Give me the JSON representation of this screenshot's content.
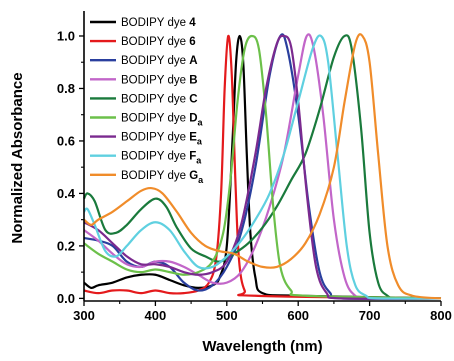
{
  "chart_data": {
    "type": "line",
    "xlabel": "Wavelength (nm)",
    "ylabel": "Normalized Absorbance",
    "xlim": [
      300,
      800
    ],
    "ylim": [
      0.0,
      1.0
    ],
    "x_ticks": [
      "300",
      "400",
      "500",
      "600",
      "700",
      "800"
    ],
    "y_ticks": [
      "0.0",
      "0.2",
      "0.4",
      "0.6",
      "0.8",
      "1.0"
    ],
    "grid": false,
    "legend_position": "top-left",
    "series": [
      {
        "name_prefix": "BODIPY dye ",
        "name_bold": "4",
        "name_sub": "",
        "color": "#000000",
        "points": [
          [
            300,
            0.06
          ],
          [
            310,
            0.04
          ],
          [
            320,
            0.05
          ],
          [
            340,
            0.06
          ],
          [
            360,
            0.08
          ],
          [
            380,
            0.09
          ],
          [
            400,
            0.09
          ],
          [
            420,
            0.07
          ],
          [
            440,
            0.05
          ],
          [
            460,
            0.04
          ],
          [
            480,
            0.05
          ],
          [
            490,
            0.08
          ],
          [
            500,
            0.2
          ],
          [
            508,
            0.6
          ],
          [
            513,
            0.9
          ],
          [
            518,
            1.0
          ],
          [
            523,
            0.9
          ],
          [
            528,
            0.55
          ],
          [
            533,
            0.25
          ],
          [
            540,
            0.08
          ],
          [
            550,
            0.02
          ],
          [
            600,
            0.01
          ],
          [
            800,
            0.0
          ]
        ]
      },
      {
        "name_prefix": "BODIPY dye ",
        "name_bold": "6",
        "name_sub": "",
        "color": "#e41a1c",
        "points": [
          [
            300,
            0.03
          ],
          [
            320,
            0.02
          ],
          [
            340,
            0.03
          ],
          [
            360,
            0.03
          ],
          [
            380,
            0.02
          ],
          [
            400,
            0.03
          ],
          [
            420,
            0.02
          ],
          [
            440,
            0.02
          ],
          [
            460,
            0.03
          ],
          [
            475,
            0.06
          ],
          [
            485,
            0.15
          ],
          [
            492,
            0.4
          ],
          [
            497,
            0.8
          ],
          [
            502,
            1.0
          ],
          [
            507,
            0.85
          ],
          [
            512,
            0.45
          ],
          [
            517,
            0.15
          ],
          [
            525,
            0.03
          ],
          [
            540,
            0.01
          ],
          [
            800,
            0.0
          ]
        ]
      },
      {
        "name_prefix": "BODIPY dye ",
        "name_bold": "A",
        "name_sub": "",
        "color": "#2a3f9e",
        "points": [
          [
            300,
            0.23
          ],
          [
            320,
            0.22
          ],
          [
            340,
            0.2
          ],
          [
            360,
            0.14
          ],
          [
            380,
            0.12
          ],
          [
            400,
            0.14
          ],
          [
            420,
            0.12
          ],
          [
            440,
            0.06
          ],
          [
            460,
            0.03
          ],
          [
            480,
            0.05
          ],
          [
            500,
            0.12
          ],
          [
            520,
            0.25
          ],
          [
            540,
            0.5
          ],
          [
            560,
            0.85
          ],
          [
            575,
            1.0
          ],
          [
            585,
            0.95
          ],
          [
            600,
            0.7
          ],
          [
            615,
            0.35
          ],
          [
            630,
            0.1
          ],
          [
            645,
            0.02
          ],
          [
            660,
            0.0
          ],
          [
            800,
            0.0
          ]
        ]
      },
      {
        "name_prefix": "BODIPY dye ",
        "name_bold": "B",
        "name_sub": "",
        "color": "#c266c9",
        "points": [
          [
            300,
            0.26
          ],
          [
            320,
            0.22
          ],
          [
            340,
            0.17
          ],
          [
            360,
            0.13
          ],
          [
            380,
            0.12
          ],
          [
            400,
            0.14
          ],
          [
            420,
            0.14
          ],
          [
            440,
            0.12
          ],
          [
            460,
            0.09
          ],
          [
            480,
            0.06
          ],
          [
            500,
            0.06
          ],
          [
            520,
            0.1
          ],
          [
            540,
            0.2
          ],
          [
            560,
            0.35
          ],
          [
            580,
            0.55
          ],
          [
            600,
            0.85
          ],
          [
            612,
            1.0
          ],
          [
            622,
            0.95
          ],
          [
            635,
            0.7
          ],
          [
            650,
            0.3
          ],
          [
            665,
            0.08
          ],
          [
            680,
            0.01
          ],
          [
            700,
            0.0
          ],
          [
            800,
            0.0
          ]
        ]
      },
      {
        "name_prefix": "BODIPY dye ",
        "name_bold": "C",
        "name_sub": "",
        "color": "#1a7a3c",
        "points": [
          [
            300,
            0.38
          ],
          [
            305,
            0.4
          ],
          [
            315,
            0.37
          ],
          [
            330,
            0.26
          ],
          [
            345,
            0.25
          ],
          [
            360,
            0.28
          ],
          [
            380,
            0.34
          ],
          [
            400,
            0.38
          ],
          [
            415,
            0.35
          ],
          [
            430,
            0.27
          ],
          [
            450,
            0.19
          ],
          [
            470,
            0.16
          ],
          [
            490,
            0.14
          ],
          [
            510,
            0.17
          ],
          [
            530,
            0.21
          ],
          [
            550,
            0.27
          ],
          [
            570,
            0.35
          ],
          [
            590,
            0.45
          ],
          [
            610,
            0.55
          ],
          [
            630,
            0.72
          ],
          [
            650,
            0.92
          ],
          [
            665,
            1.0
          ],
          [
            675,
            0.95
          ],
          [
            688,
            0.65
          ],
          [
            700,
            0.25
          ],
          [
            712,
            0.06
          ],
          [
            725,
            0.01
          ],
          [
            740,
            0.0
          ],
          [
            800,
            0.0
          ]
        ]
      },
      {
        "name_prefix": "BODIPY dye ",
        "name_bold": "D",
        "name_sub": "a",
        "color": "#6cc04a",
        "points": [
          [
            300,
            0.21
          ],
          [
            320,
            0.17
          ],
          [
            340,
            0.14
          ],
          [
            360,
            0.11
          ],
          [
            380,
            0.1
          ],
          [
            400,
            0.11
          ],
          [
            420,
            0.1
          ],
          [
            440,
            0.09
          ],
          [
            460,
            0.1
          ],
          [
            480,
            0.14
          ],
          [
            495,
            0.25
          ],
          [
            505,
            0.45
          ],
          [
            515,
            0.75
          ],
          [
            525,
            0.95
          ],
          [
            535,
            1.0
          ],
          [
            545,
            0.95
          ],
          [
            555,
            0.7
          ],
          [
            565,
            0.35
          ],
          [
            575,
            0.12
          ],
          [
            590,
            0.03
          ],
          [
            610,
            0.01
          ],
          [
            800,
            0.0
          ]
        ]
      },
      {
        "name_prefix": "BODIPY dye ",
        "name_bold": "E",
        "name_sub": "a",
        "color": "#7b2a8f",
        "points": [
          [
            300,
            0.29
          ],
          [
            320,
            0.26
          ],
          [
            340,
            0.21
          ],
          [
            360,
            0.16
          ],
          [
            380,
            0.13
          ],
          [
            400,
            0.13
          ],
          [
            420,
            0.12
          ],
          [
            440,
            0.1
          ],
          [
            460,
            0.09
          ],
          [
            480,
            0.1
          ],
          [
            500,
            0.14
          ],
          [
            520,
            0.28
          ],
          [
            540,
            0.55
          ],
          [
            555,
            0.8
          ],
          [
            570,
            0.97
          ],
          [
            580,
            1.0
          ],
          [
            590,
            0.96
          ],
          [
            600,
            0.75
          ],
          [
            612,
            0.4
          ],
          [
            625,
            0.12
          ],
          [
            640,
            0.02
          ],
          [
            660,
            0.0
          ],
          [
            800,
            0.0
          ]
        ]
      },
      {
        "name_prefix": "BODIPY dye ",
        "name_bold": "F",
        "name_sub": "a",
        "color": "#5fd0e0",
        "points": [
          [
            300,
            0.33
          ],
          [
            305,
            0.34
          ],
          [
            315,
            0.28
          ],
          [
            330,
            0.18
          ],
          [
            345,
            0.16
          ],
          [
            360,
            0.2
          ],
          [
            380,
            0.26
          ],
          [
            400,
            0.29
          ],
          [
            420,
            0.26
          ],
          [
            440,
            0.18
          ],
          [
            460,
            0.12
          ],
          [
            480,
            0.12
          ],
          [
            500,
            0.16
          ],
          [
            520,
            0.22
          ],
          [
            540,
            0.3
          ],
          [
            560,
            0.4
          ],
          [
            580,
            0.55
          ],
          [
            600,
            0.75
          ],
          [
            620,
            0.95
          ],
          [
            632,
            1.0
          ],
          [
            642,
            0.9
          ],
          [
            655,
            0.55
          ],
          [
            668,
            0.2
          ],
          [
            680,
            0.05
          ],
          [
            695,
            0.01
          ],
          [
            710,
            0.0
          ],
          [
            800,
            0.0
          ]
        ]
      },
      {
        "name_prefix": "BODIPY dye ",
        "name_bold": "G",
        "name_sub": "a",
        "color": "#f08c2a",
        "points": [
          [
            300,
            0.3
          ],
          [
            310,
            0.28
          ],
          [
            320,
            0.3
          ],
          [
            340,
            0.33
          ],
          [
            360,
            0.37
          ],
          [
            380,
            0.41
          ],
          [
            395,
            0.42
          ],
          [
            410,
            0.4
          ],
          [
            430,
            0.33
          ],
          [
            450,
            0.25
          ],
          [
            470,
            0.2
          ],
          [
            490,
            0.18
          ],
          [
            510,
            0.17
          ],
          [
            530,
            0.14
          ],
          [
            550,
            0.12
          ],
          [
            570,
            0.12
          ],
          [
            590,
            0.15
          ],
          [
            610,
            0.21
          ],
          [
            630,
            0.32
          ],
          [
            650,
            0.5
          ],
          [
            665,
            0.75
          ],
          [
            680,
            0.97
          ],
          [
            690,
            1.0
          ],
          [
            700,
            0.9
          ],
          [
            712,
            0.55
          ],
          [
            725,
            0.2
          ],
          [
            740,
            0.05
          ],
          [
            760,
            0.01
          ],
          [
            800,
            0.0
          ]
        ]
      }
    ]
  }
}
